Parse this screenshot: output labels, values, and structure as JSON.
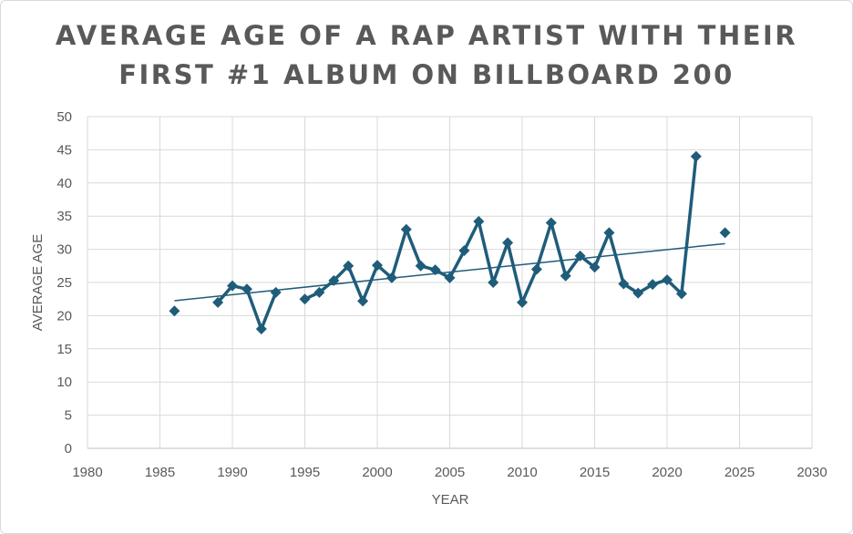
{
  "chart_data": {
    "type": "scatter",
    "title_lines": [
      "AVERAGE AGE OF A RAP ARTIST WITH THEIR",
      "FIRST #1 ALBUM ON BILLBOARD 200"
    ],
    "xlabel": "YEAR",
    "ylabel": "AVERAGE AGE",
    "xlim": [
      1980,
      2030
    ],
    "ylim": [
      0,
      50
    ],
    "xticks": [
      1980,
      1985,
      1990,
      1995,
      2000,
      2005,
      2010,
      2015,
      2020,
      2025,
      2030
    ],
    "yticks": [
      0,
      5,
      10,
      15,
      20,
      25,
      30,
      35,
      40,
      45,
      50
    ],
    "grid": true,
    "series": [
      {
        "color": "#1f5c7a",
        "connected": true,
        "marker": "diamond",
        "x": [
          1986,
          1989,
          1990,
          1991,
          1992,
          1993,
          1995,
          1996,
          1997,
          1998,
          1999,
          2000,
          2001,
          2002,
          2003,
          2004,
          2005,
          2006,
          2007,
          2008,
          2009,
          2010,
          2011,
          2012,
          2013,
          2014,
          2015,
          2016,
          2017,
          2018,
          2019,
          2020,
          2021,
          2022,
          2024
        ],
        "y": [
          20.7,
          22.0,
          24.5,
          24.0,
          18.0,
          23.5,
          22.5,
          23.5,
          25.3,
          27.5,
          22.2,
          27.6,
          25.7,
          33.0,
          27.5,
          26.9,
          25.7,
          29.8,
          34.2,
          25.0,
          31.0,
          22.0,
          27.0,
          34.0,
          26.0,
          29.0,
          27.3,
          32.5,
          24.8,
          23.4,
          24.7,
          25.4,
          23.3,
          44.0,
          32.5
        ]
      }
    ],
    "trendline": {
      "type": "linear",
      "color": "#1f5c7a"
    }
  }
}
